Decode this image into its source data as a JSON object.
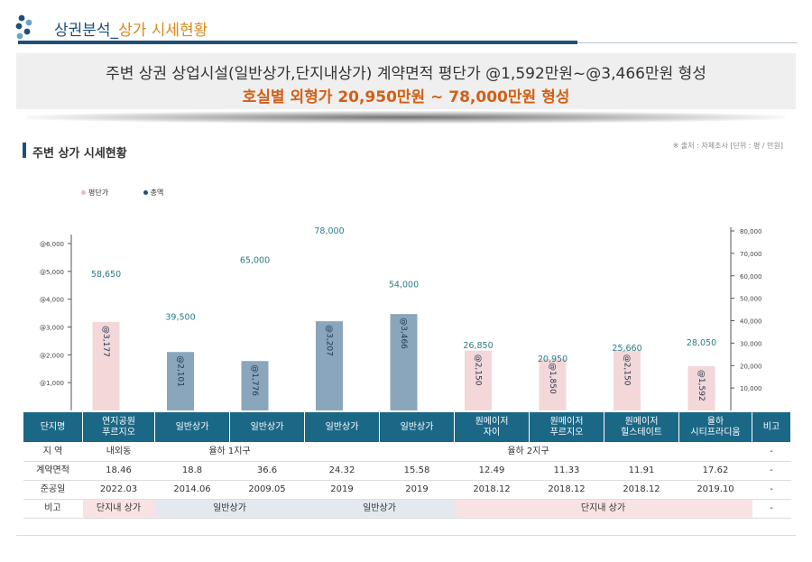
{
  "header": {
    "title_main": "상권분석_",
    "title_accent": "상가 시세현황",
    "banner_line1": "주변 상권 상업시설(일반상가,단지내상가) 계약면적 평단가 @1,592만원~@3,466만원 형성",
    "banner_line2": "호실별 외형가 20,950만원 ~ 78,000만원 형성"
  },
  "section": {
    "title": "주변 상가 시세현황",
    "source_note": "※ 출처 : 자체조사 [단위 : 평 / 만원]"
  },
  "colors": {
    "navy": "#1e4f79",
    "orange": "#d35f14",
    "pink_bar": "#f3d7d9",
    "blue_bar": "#8aa6bc",
    "total_label": "#2a7d8a",
    "table_header": "#1b6786"
  },
  "chart_data": {
    "type": "bar",
    "categories": [
      "연지공원 푸르지오",
      "일반상가",
      "일반상가",
      "일반상가",
      "일반상가",
      "원메이저 자이",
      "원메이저 푸르지오",
      "원메이저 힐스테이트",
      "율하 시티프라디움"
    ],
    "series": [
      {
        "name": "평단가",
        "values": [
          3177,
          2101,
          1776,
          3207,
          3466,
          2150,
          1850,
          2150,
          1592
        ],
        "labels": [
          "@3,177",
          "@2,101",
          "@1,776",
          "@3,207",
          "@3,466",
          "@2,150",
          "@1,850",
          "@2,150",
          "@1,592"
        ],
        "axis": "left"
      },
      {
        "name": "총액",
        "values": [
          58650,
          39500,
          65000,
          78000,
          54000,
          26850,
          20950,
          25660,
          28050
        ],
        "labels": [
          "58,650",
          "39,500",
          "65,000",
          "78,000",
          "54,000",
          "26,850",
          "20,950",
          "25,660",
          "28,050"
        ],
        "axis": "right"
      }
    ],
    "bar_types": [
      "pink",
      "blue",
      "blue",
      "blue",
      "blue",
      "pink",
      "pink",
      "pink",
      "pink"
    ],
    "y_left": {
      "ticks": [
        "@1,000",
        "@2,000",
        "@3,000",
        "@4,000",
        "@5,000",
        "@6,000"
      ],
      "tick_values": [
        1000,
        2000,
        3000,
        4000,
        5000,
        6000
      ],
      "range": [
        0,
        6500
      ]
    },
    "y_right": {
      "ticks": [
        "10,000",
        "20,000",
        "30,000",
        "40,000",
        "50,000",
        "60,000",
        "70,000",
        "80,000"
      ],
      "tick_values": [
        10000,
        20000,
        30000,
        40000,
        50000,
        60000,
        70000,
        80000
      ],
      "range": [
        0,
        80000
      ]
    },
    "legend": [
      "평단가",
      "총액"
    ],
    "legend_position": "top-left"
  },
  "table": {
    "header": [
      "단지명",
      "연지공원\n푸르지오",
      "일반상가",
      "일반상가",
      "일반상가",
      "일반상가",
      "원메이저\n자이",
      "원메이저\n푸르지오",
      "원메이저\n힐스테이트",
      "율하\n시티프라디움",
      "비고"
    ],
    "rows": {
      "region": {
        "label": "지 역",
        "v1": "내외동",
        "v2": "율하 1지구",
        "v3": "율하 2지구",
        "note": "-"
      },
      "area": {
        "label": "계약면적",
        "values": [
          "18.46",
          "18.8",
          "36.6",
          "24.32",
          "15.58",
          "12.49",
          "11.33",
          "11.91",
          "17.62"
        ],
        "note": "-"
      },
      "completion": {
        "label": "준공일",
        "values": [
          "2022.03",
          "2014.06",
          "2009.05",
          "2019",
          "2019",
          "2018.12",
          "2018.12",
          "2018.12",
          "2019.10"
        ],
        "note": "-"
      },
      "remark": {
        "label": "비고",
        "v1": "단지내 상가",
        "v2": "일반상가",
        "v3": "일반상가",
        "v4": "단지내 상가",
        "note": "-"
      }
    }
  }
}
